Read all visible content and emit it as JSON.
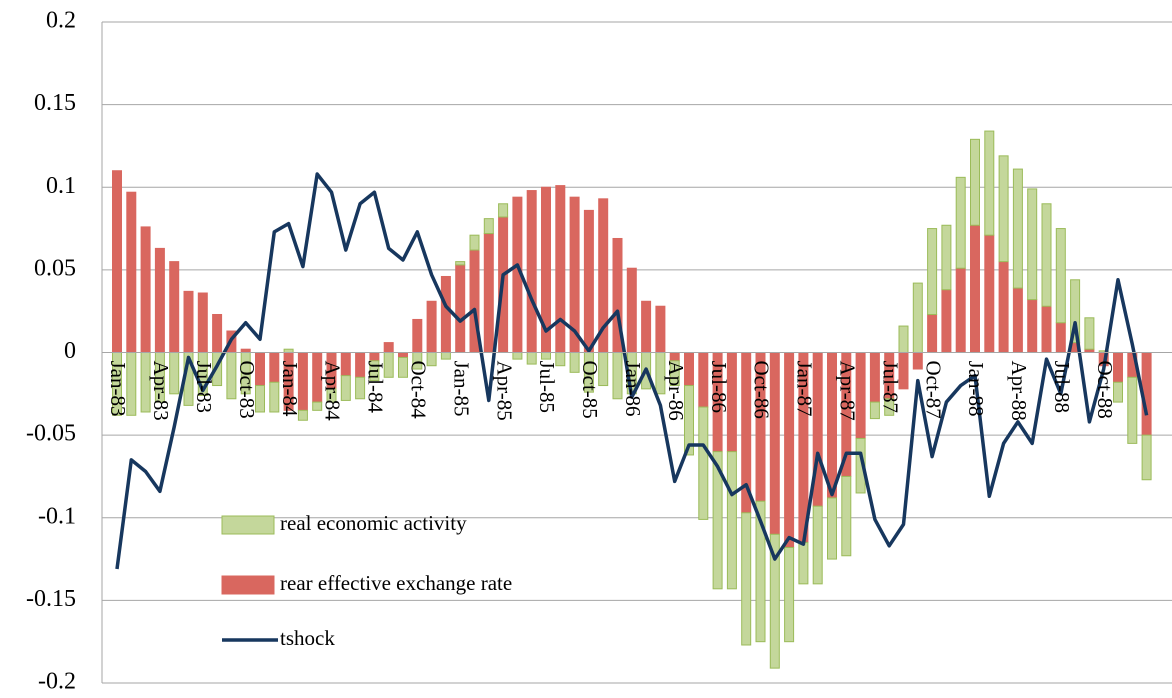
{
  "chart_data": {
    "type": "bar-line",
    "categories": [
      "Jan-83",
      null,
      null,
      "Apr-83",
      null,
      null,
      "Jul-83",
      null,
      null,
      "Oct-83",
      null,
      null,
      "Jan-84",
      null,
      null,
      "Apr-84",
      null,
      null,
      "Jul-84",
      null,
      null,
      "Oct-84",
      null,
      null,
      "Jan-85",
      null,
      null,
      "Apr-85",
      null,
      null,
      "Jul-85",
      null,
      null,
      "Oct-85",
      null,
      null,
      "Jan-86",
      null,
      null,
      "Apr-86",
      null,
      null,
      "Jul-86",
      null,
      null,
      "Oct-86",
      null,
      null,
      "Jan-87",
      null,
      null,
      "Apr-87",
      null,
      null,
      "Jul-87",
      null,
      null,
      "Oct-87",
      null,
      null,
      "Jan-88",
      null,
      null,
      "Apr-88",
      null,
      null,
      "Jul-88",
      null,
      null,
      "Oct-88",
      null,
      null,
      null
    ],
    "series": [
      {
        "name": "real economic activity",
        "kind": "bar",
        "color": "#c4d79b",
        "stroke": "#9bbb59",
        "values": [
          -0.038,
          -0.038,
          -0.036,
          -0.03,
          -0.025,
          -0.032,
          -0.026,
          -0.02,
          -0.028,
          -0.025,
          -0.016,
          -0.018,
          0.002,
          -0.006,
          -0.005,
          -0.008,
          -0.015,
          -0.013,
          -0.012,
          -0.015,
          -0.012,
          -0.01,
          -0.008,
          -0.004,
          0.002,
          0.009,
          0.009,
          0.008,
          -0.004,
          -0.007,
          -0.004,
          -0.008,
          -0.012,
          -0.024,
          -0.02,
          -0.028,
          -0.025,
          -0.022,
          -0.025,
          -0.015,
          -0.042,
          -0.068,
          -0.083,
          -0.083,
          -0.08,
          -0.085,
          -0.081,
          -0.057,
          -0.025,
          -0.047,
          -0.037,
          -0.048,
          -0.033,
          -0.01,
          -0.01,
          0.016,
          0.042,
          0.052,
          0.039,
          0.055,
          0.052,
          0.063,
          0.064,
          0.072,
          0.067,
          0.062,
          0.057,
          0.038,
          0.019,
          0.001,
          -0.012,
          -0.04,
          -0.027
        ]
      },
      {
        "name": "rear effective exchange rate",
        "kind": "bar",
        "color": "#d9675f",
        "stroke": "#d9675f",
        "values": [
          0.11,
          0.097,
          0.076,
          0.063,
          0.055,
          0.037,
          0.036,
          0.023,
          0.013,
          0.002,
          -0.02,
          -0.018,
          -0.035,
          -0.035,
          -0.03,
          -0.022,
          -0.014,
          -0.015,
          -0.005,
          0.006,
          -0.003,
          0.02,
          0.031,
          0.046,
          0.053,
          0.062,
          0.072,
          0.082,
          0.094,
          0.098,
          0.1,
          0.101,
          0.094,
          0.086,
          0.093,
          0.069,
          0.051,
          0.031,
          0.028,
          -0.005,
          -0.02,
          -0.033,
          -0.06,
          -0.06,
          -0.097,
          -0.09,
          -0.11,
          -0.118,
          -0.115,
          -0.093,
          -0.088,
          -0.075,
          -0.052,
          -0.03,
          -0.028,
          -0.022,
          -0.01,
          0.023,
          0.038,
          0.051,
          0.077,
          0.071,
          0.055,
          0.039,
          0.032,
          0.028,
          0.018,
          0.006,
          0.002,
          -0.008,
          -0.018,
          -0.015,
          -0.05
        ]
      },
      {
        "name": "tshock",
        "kind": "line",
        "color": "#17375e",
        "values": [
          -0.131,
          -0.065,
          -0.072,
          -0.084,
          -0.045,
          -0.003,
          -0.023,
          -0.008,
          0.008,
          0.018,
          0.008,
          0.073,
          0.078,
          0.052,
          0.108,
          0.097,
          0.062,
          0.09,
          0.097,
          0.063,
          0.056,
          0.073,
          0.047,
          0.028,
          0.019,
          0.026,
          -0.029,
          0.047,
          0.053,
          0.032,
          0.013,
          0.02,
          0.013,
          0.001,
          0.015,
          0.025,
          -0.027,
          -0.01,
          -0.032,
          -0.078,
          -0.056,
          -0.056,
          -0.069,
          -0.086,
          -0.08,
          -0.102,
          -0.125,
          -0.112,
          -0.116,
          -0.061,
          -0.086,
          -0.061,
          -0.061,
          -0.101,
          -0.117,
          -0.104,
          -0.017,
          -0.063,
          -0.03,
          -0.02,
          -0.014,
          -0.087,
          -0.055,
          -0.042,
          -0.055,
          -0.004,
          -0.025,
          0.018,
          -0.042,
          -0.01,
          0.044,
          0.005,
          -0.038
        ]
      }
    ],
    "ylim": [
      -0.2,
      0.2
    ],
    "yticks": [
      -0.2,
      -0.15,
      -0.1,
      -0.05,
      0,
      0.05,
      0.1,
      0.15,
      0.2
    ],
    "grid": true
  }
}
